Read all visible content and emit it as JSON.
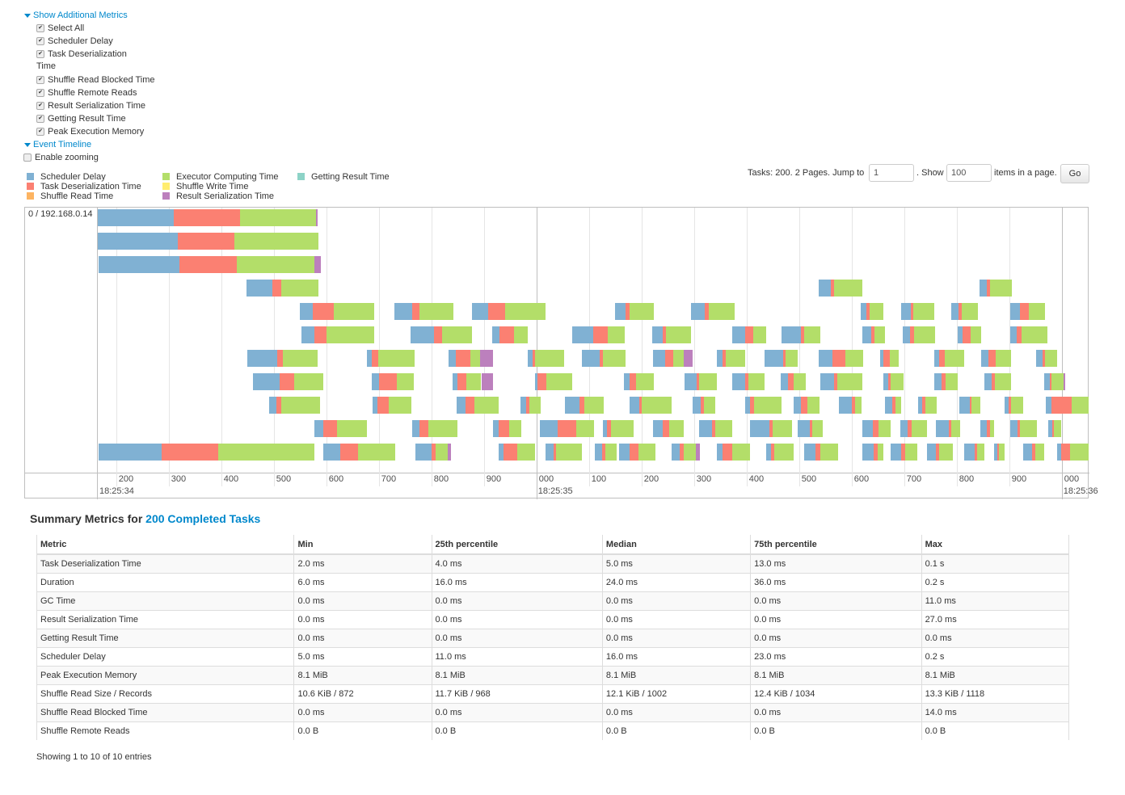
{
  "metrics_toggle": "Show Additional Metrics",
  "metric_options": [
    {
      "label": "Select All",
      "checked": true
    },
    {
      "label": "Scheduler Delay",
      "checked": true
    },
    {
      "label": "Task Deserialization",
      "label2": "Time",
      "checked": true
    },
    {
      "label": "Shuffle Read Blocked Time",
      "checked": true
    },
    {
      "label": "Shuffle Remote Reads",
      "checked": true
    },
    {
      "label": "Result Serialization Time",
      "checked": true
    },
    {
      "label": "Getting Result Time",
      "checked": true
    },
    {
      "label": "Peak Execution Memory",
      "checked": true
    }
  ],
  "timeline_toggle": "Event Timeline",
  "enable_zooming": {
    "label": "Enable zooming",
    "checked": false
  },
  "legend": [
    {
      "label": "Scheduler Delay",
      "color": "#80B1D3"
    },
    {
      "label": "Task Deserialization Time",
      "color": "#FB8072"
    },
    {
      "label": "Shuffle Read Time",
      "color": "#FDB462"
    },
    {
      "label": "Executor Computing Time",
      "color": "#B3DE69"
    },
    {
      "label": "Shuffle Write Time",
      "color": "#FFED6F"
    },
    {
      "label": "Result Serialization Time",
      "color": "#BC80BD"
    },
    {
      "label": "Getting Result Time",
      "color": "#8DD3C7"
    }
  ],
  "pagination": {
    "text1": "Tasks: 200. 2 Pages. Jump to",
    "page": "1",
    "text2": ". Show",
    "page_size": "100",
    "text3": "items in a page.",
    "go": "Go"
  },
  "chart_data": {
    "type": "timeline",
    "group_label": "0 / 192.168.0.14",
    "time_origin": "18:25:34.000",
    "x_range_ms": [
      165,
      2052
    ],
    "tick_labels": [
      "200",
      "300",
      "400",
      "500",
      "600",
      "700",
      "800",
      "900",
      "000",
      "100",
      "200",
      "300",
      "400",
      "500",
      "600",
      "700",
      "800",
      "900",
      "000"
    ],
    "tick_values_ms": [
      200,
      300,
      400,
      500,
      600,
      700,
      800,
      900,
      1000,
      1100,
      1200,
      1300,
      1400,
      1500,
      1600,
      1700,
      1800,
      1900,
      2000
    ],
    "major_labels": [
      {
        "ms": 165,
        "label": "18:25:34"
      },
      {
        "ms": 1000,
        "label": "18:25:35"
      },
      {
        "ms": 2000,
        "label": "18:25:36"
      }
    ],
    "task_fields": [
      "start_ms",
      "scheduler_delay_ms",
      "deserialization_ms",
      "computing_ms",
      "result_serialization_ms"
    ],
    "tracks": [
      [
        [
          165,
          145,
          126,
          145,
          3
        ]
      ],
      [
        [
          165,
          152,
          108,
          160,
          0
        ]
      ],
      [
        [
          166,
          155,
          108,
          148,
          12
        ]
      ],
      [
        [
          448,
          49,
          17,
          71,
          0
        ],
        [
          1538,
          22,
          6,
          55,
          0
        ],
        [
          1843,
          14,
          6,
          42,
          0
        ]
      ],
      [
        [
          549,
          25,
          40,
          77,
          0
        ],
        [
          729,
          34,
          14,
          65,
          0
        ],
        [
          877,
          31,
          32,
          78,
          0
        ],
        [
          1149,
          20,
          8,
          46,
          0
        ],
        [
          1294,
          26,
          8,
          49,
          0
        ],
        [
          1617,
          11,
          6,
          26,
          0
        ],
        [
          1694,
          18,
          6,
          40,
          0
        ],
        [
          1789,
          15,
          6,
          31,
          0
        ],
        [
          1902,
          18,
          17,
          31,
          0
        ]
      ],
      [
        [
          552,
          26,
          22,
          91,
          0
        ],
        [
          760,
          45,
          15,
          57,
          0
        ],
        [
          915,
          14,
          29,
          26,
          0
        ],
        [
          1068,
          40,
          28,
          32,
          0
        ],
        [
          1220,
          20,
          6,
          48,
          0
        ],
        [
          1372,
          26,
          15,
          25,
          0
        ],
        [
          1466,
          38,
          6,
          31,
          0
        ],
        [
          1620,
          18,
          6,
          20,
          0
        ],
        [
          1697,
          14,
          8,
          40,
          0
        ],
        [
          1802,
          9,
          15,
          20,
          0
        ],
        [
          1902,
          12,
          9,
          49,
          0
        ]
      ],
      [
        [
          449,
          58,
          11,
          65,
          0
        ],
        [
          678,
          9,
          12,
          69,
          0
        ],
        [
          832,
          14,
          28,
          18,
          26
        ],
        [
          983,
          9,
          6,
          55,
          0
        ],
        [
          1086,
          34,
          6,
          43,
          0
        ],
        [
          1222,
          23,
          15,
          20,
          18
        ],
        [
          1343,
          12,
          6,
          37,
          0
        ],
        [
          1434,
          35,
          6,
          22,
          0
        ],
        [
          1538,
          25,
          25,
          34,
          0
        ],
        [
          1654,
          6,
          12,
          18,
          0
        ],
        [
          1757,
          9,
          12,
          37,
          0
        ],
        [
          1846,
          14,
          15,
          29,
          0
        ],
        [
          1951,
          12,
          5,
          23,
          0
        ]
      ],
      [
        [
          460,
          51,
          28,
          55,
          0
        ],
        [
          686,
          14,
          34,
          32,
          0
        ],
        [
          840,
          9,
          18,
          28,
          23
        ],
        [
          997,
          5,
          17,
          49,
          0
        ],
        [
          1166,
          12,
          12,
          34,
          0
        ],
        [
          1282,
          23,
          5,
          34,
          0
        ],
        [
          1372,
          25,
          6,
          32,
          0
        ],
        [
          1465,
          14,
          11,
          22,
          0
        ],
        [
          1540,
          26,
          6,
          49,
          0
        ],
        [
          1660,
          9,
          5,
          25,
          0
        ],
        [
          1757,
          14,
          8,
          23,
          0
        ],
        [
          1852,
          15,
          5,
          31,
          0
        ],
        [
          1966,
          12,
          3,
          22,
          3
        ]
      ],
      [
        [
          491,
          14,
          9,
          74,
          0
        ],
        [
          688,
          9,
          22,
          43,
          0
        ],
        [
          848,
          17,
          17,
          46,
          0
        ],
        [
          969,
          11,
          6,
          22,
          0
        ],
        [
          1054,
          28,
          9,
          37,
          0
        ],
        [
          1178,
          18,
          5,
          57,
          0
        ],
        [
          1298,
          15,
          6,
          22,
          0
        ],
        [
          1397,
          9,
          9,
          52,
          0
        ],
        [
          1489,
          15,
          12,
          23,
          0
        ],
        [
          1575,
          26,
          6,
          12,
          0
        ],
        [
          1663,
          14,
          6,
          12,
          0
        ],
        [
          1726,
          9,
          5,
          22,
          0
        ],
        [
          1805,
          20,
          3,
          17,
          0
        ],
        [
          1891,
          8,
          5,
          23,
          0
        ],
        [
          1969,
          12,
          38,
          32,
          0
        ]
      ],
      [
        [
          577,
          18,
          25,
          58,
          0
        ],
        [
          763,
          14,
          18,
          54,
          0
        ],
        [
          917,
          11,
          20,
          23,
          0
        ],
        [
          1006,
          35,
          35,
          34,
          0
        ],
        [
          1126,
          8,
          8,
          43,
          0
        ],
        [
          1222,
          18,
          12,
          29,
          0
        ],
        [
          1309,
          26,
          6,
          31,
          0
        ],
        [
          1406,
          38,
          6,
          37,
          0
        ],
        [
          1497,
          23,
          5,
          20,
          0
        ],
        [
          1620,
          20,
          11,
          23,
          0
        ],
        [
          1692,
          14,
          9,
          29,
          0
        ],
        [
          1760,
          25,
          5,
          17,
          0
        ],
        [
          1845,
          12,
          6,
          8,
          0
        ],
        [
          1902,
          14,
          5,
          31,
          0
        ],
        [
          1974,
          8,
          3,
          14,
          0
        ]
      ],
      [
        [
          166,
          120,
          108,
          183,
          0
        ],
        [
          594,
          32,
          34,
          71,
          0
        ],
        [
          769,
          31,
          8,
          23,
          6
        ],
        [
          928,
          9,
          26,
          34,
          0
        ],
        [
          1018,
          14,
          6,
          48,
          0
        ],
        [
          1111,
          14,
          6,
          22,
          0
        ],
        [
          1157,
          20,
          17,
          32,
          0
        ],
        [
          1258,
          15,
          8,
          22,
          8
        ],
        [
          1343,
          12,
          17,
          35,
          0
        ],
        [
          1438,
          8,
          6,
          38,
          0
        ],
        [
          1509,
          22,
          9,
          35,
          0
        ],
        [
          1620,
          22,
          8,
          11,
          0
        ],
        [
          1674,
          20,
          8,
          23,
          0
        ],
        [
          1743,
          17,
          6,
          26,
          0
        ],
        [
          1814,
          20,
          5,
          14,
          0
        ],
        [
          1871,
          6,
          3,
          11,
          0
        ],
        [
          1926,
          17,
          6,
          18,
          0
        ],
        [
          1991,
          8,
          17,
          35,
          0
        ]
      ]
    ]
  },
  "summary": {
    "title_prefix": "Summary Metrics for",
    "title_link": "200 Completed Tasks",
    "columns": [
      "Metric",
      "Min",
      "25th percentile",
      "Median",
      "75th percentile",
      "Max"
    ],
    "rows": [
      [
        "Task Deserialization Time",
        "2.0 ms",
        "4.0 ms",
        "5.0 ms",
        "13.0 ms",
        "0.1 s"
      ],
      [
        "Duration",
        "6.0 ms",
        "16.0 ms",
        "24.0 ms",
        "36.0 ms",
        "0.2 s"
      ],
      [
        "GC Time",
        "0.0 ms",
        "0.0 ms",
        "0.0 ms",
        "0.0 ms",
        "11.0 ms"
      ],
      [
        "Result Serialization Time",
        "0.0 ms",
        "0.0 ms",
        "0.0 ms",
        "0.0 ms",
        "27.0 ms"
      ],
      [
        "Getting Result Time",
        "0.0 ms",
        "0.0 ms",
        "0.0 ms",
        "0.0 ms",
        "0.0 ms"
      ],
      [
        "Scheduler Delay",
        "5.0 ms",
        "11.0 ms",
        "16.0 ms",
        "23.0 ms",
        "0.2 s"
      ],
      [
        "Peak Execution Memory",
        "8.1 MiB",
        "8.1 MiB",
        "8.1 MiB",
        "8.1 MiB",
        "8.1 MiB"
      ],
      [
        "Shuffle Read Size / Records",
        "10.6 KiB / 872",
        "11.7 KiB / 968",
        "12.1 KiB / 1002",
        "12.4 KiB / 1034",
        "13.3 KiB / 1118"
      ],
      [
        "Shuffle Read Blocked Time",
        "0.0 ms",
        "0.0 ms",
        "0.0 ms",
        "0.0 ms",
        "14.0 ms"
      ],
      [
        "Shuffle Remote Reads",
        "0.0 B",
        "0.0 B",
        "0.0 B",
        "0.0 B",
        "0.0 B"
      ]
    ],
    "footer": "Showing 1 to 10 of 10 entries"
  }
}
